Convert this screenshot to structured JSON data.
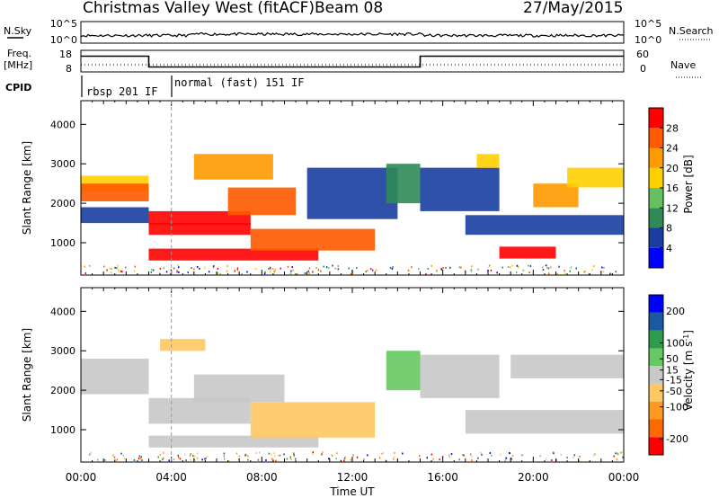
{
  "header": {
    "title": "Christmas Valley West (fitACF)",
    "beam": "Beam 08",
    "date": "27/May/2015"
  },
  "nsky_panel": {
    "left_label": "N.Sky",
    "right_label": "N.Search",
    "left_ticks": [
      "10^5",
      "10^0"
    ],
    "right_ticks": [
      "10^5",
      "10^0"
    ]
  },
  "freq_panel": {
    "left_label_1": "Freq.",
    "left_label_2": "[MHz]",
    "right_label": "Nave",
    "left_ticks": [
      "18",
      "8"
    ],
    "right_ticks": [
      "60",
      "0"
    ],
    "freq_steps": [
      {
        "start_h": 0.0,
        "end_h": 3.0,
        "mhz": 15.3
      },
      {
        "start_h": 3.0,
        "end_h": 15.0,
        "mhz": 10.3
      },
      {
        "start_h": 15.0,
        "end_h": 24.0,
        "mhz": 15.3
      }
    ]
  },
  "cpid_panel": {
    "label": "CPID",
    "segments": [
      {
        "start_h": 0.0,
        "text": "rbsp 201 IF"
      },
      {
        "start_h": 4.0,
        "text": "normal (fast) 151 IF"
      }
    ]
  },
  "x_axis": {
    "label": "Time UT",
    "range_h": [
      0,
      24
    ],
    "ticks": [
      "00:00",
      "04:00",
      "08:00",
      "12:00",
      "16:00",
      "20:00",
      "00:00"
    ]
  },
  "colors": {
    "power": [
      "#0000ff",
      "#1a3ea0",
      "#2e8b57",
      "#66c060",
      "#ffd000",
      "#ff9a00",
      "#ff5a00",
      "#ff0000"
    ],
    "velocity": [
      "#ff0000",
      "#ff6a00",
      "#ff9a20",
      "#ffc860",
      "#c8c8c8",
      "#66c860",
      "#2e9b4e",
      "#1a5aa0",
      "#0000ff"
    ]
  },
  "chart_data": [
    {
      "type": "heatmap",
      "title": "",
      "quantity": "Power",
      "ylabel": "Slant Range [km]",
      "yticks": [
        "1000",
        "2000",
        "3000",
        "4000"
      ],
      "ylim": [
        180,
        4600
      ],
      "colorbar_label": "Power [dB]",
      "colorbar_ticks": [
        "4",
        "8",
        "12",
        "16",
        "20",
        "24",
        "28"
      ],
      "colorbar_range": [
        0,
        32
      ],
      "bands": [
        {
          "t0": 0.0,
          "t1": 3.0,
          "r0": 2300,
          "r1": 2700,
          "value": 18
        },
        {
          "t0": 0.0,
          "t1": 3.0,
          "r0": 2050,
          "r1": 2500,
          "value": 26
        },
        {
          "t0": 0.0,
          "t1": 3.0,
          "r0": 1500,
          "r1": 1900,
          "value": 5
        },
        {
          "t0": 3.0,
          "t1": 7.5,
          "r0": 1450,
          "r1": 1800,
          "value": 28
        },
        {
          "t0": 3.0,
          "t1": 7.5,
          "r0": 1200,
          "r1": 1500,
          "value": 29
        },
        {
          "t0": 3.0,
          "t1": 10.5,
          "r0": 550,
          "r1": 850,
          "value": 29
        },
        {
          "t0": 7.5,
          "t1": 13.0,
          "r0": 800,
          "r1": 1350,
          "value": 24
        },
        {
          "t0": 5.0,
          "t1": 8.5,
          "r0": 2600,
          "r1": 3250,
          "value": 20
        },
        {
          "t0": 6.5,
          "t1": 9.5,
          "r0": 1700,
          "r1": 2400,
          "value": 27
        },
        {
          "t0": 10.0,
          "t1": 14.0,
          "r0": 1600,
          "r1": 2900,
          "value": 6
        },
        {
          "t0": 13.5,
          "t1": 15.0,
          "r0": 2000,
          "r1": 3000,
          "value": 10
        },
        {
          "t0": 15.0,
          "t1": 18.5,
          "r0": 1800,
          "r1": 2900,
          "value": 7
        },
        {
          "t0": 18.5,
          "t1": 21.0,
          "r0": 600,
          "r1": 900,
          "value": 28
        },
        {
          "t0": 17.0,
          "t1": 24.0,
          "r0": 1200,
          "r1": 1700,
          "value": 5
        },
        {
          "t0": 20.0,
          "t1": 22.0,
          "r0": 1900,
          "r1": 2500,
          "value": 22
        },
        {
          "t0": 21.5,
          "t1": 24.0,
          "r0": 2400,
          "r1": 2900,
          "value": 16
        },
        {
          "t0": 17.5,
          "t1": 18.5,
          "r0": 2900,
          "r1": 3250,
          "value": 18
        }
      ]
    },
    {
      "type": "heatmap",
      "title": "",
      "quantity": "Velocity",
      "ylabel": "Slant Range [km]",
      "yticks": [
        "1000",
        "2000",
        "3000",
        "4000"
      ],
      "ylim": [
        180,
        4600
      ],
      "colorbar_label": "Velocity [m s",
      "colorbar_label_sup": "-1",
      "colorbar_label_end": "]",
      "colorbar_ticks": [
        "-200",
        "-100",
        "-50",
        "-15",
        "15",
        "50",
        "100",
        "200"
      ],
      "colorbar_range": [
        -250,
        250
      ],
      "bands": [
        {
          "t0": 0.0,
          "t1": 3.0,
          "r0": 1900,
          "r1": 2800,
          "value": 0
        },
        {
          "t0": 3.0,
          "t1": 7.5,
          "r0": 1150,
          "r1": 1800,
          "value": 0
        },
        {
          "t0": 3.0,
          "t1": 10.5,
          "r0": 550,
          "r1": 850,
          "value": 0
        },
        {
          "t0": 7.5,
          "t1": 13.0,
          "r0": 800,
          "r1": 1700,
          "value": -80
        },
        {
          "t0": 5.0,
          "t1": 9.0,
          "r0": 1700,
          "r1": 2400,
          "value": 0
        },
        {
          "t0": 13.5,
          "t1": 15.0,
          "r0": 2000,
          "r1": 3000,
          "value": 40
        },
        {
          "t0": 15.0,
          "t1": 18.5,
          "r0": 1800,
          "r1": 2900,
          "value": 0
        },
        {
          "t0": 17.0,
          "t1": 24.0,
          "r0": 900,
          "r1": 1500,
          "value": 0
        },
        {
          "t0": 19.0,
          "t1": 24.0,
          "r0": 2300,
          "r1": 2900,
          "value": 0
        },
        {
          "t0": 3.5,
          "t1": 5.5,
          "r0": 3000,
          "r1": 3300,
          "value": -30
        }
      ]
    }
  ]
}
